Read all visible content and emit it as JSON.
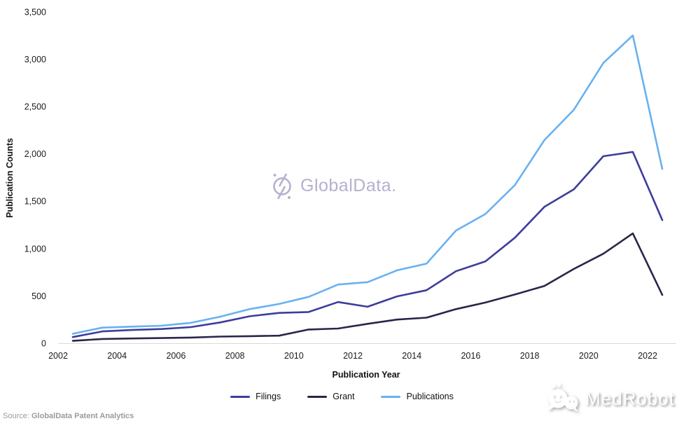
{
  "chart": {
    "colors": {
      "axis_line": "#d9d9d9",
      "tick_text": "#1a1a1a"
    }
  },
  "chart_data": {
    "type": "line",
    "title": "",
    "xlabel": "Publication Year",
    "ylabel": "Publication Counts",
    "x": [
      2002,
      2003,
      2004,
      2005,
      2006,
      2007,
      2008,
      2009,
      2010,
      2011,
      2012,
      2013,
      2014,
      2015,
      2016,
      2017,
      2018,
      2019,
      2020,
      2021,
      2022
    ],
    "series": [
      {
        "name": "Filings",
        "color": "#3d3d9c",
        "values": [
          65,
          125,
          140,
          150,
          170,
          220,
          285,
          320,
          330,
          435,
          385,
          495,
          560,
          760,
          865,
          1115,
          1440,
          1625,
          1975,
          2020,
          1300
        ]
      },
      {
        "name": "Grant",
        "color": "#27274a",
        "values": [
          25,
          45,
          50,
          55,
          60,
          70,
          75,
          80,
          145,
          155,
          205,
          250,
          270,
          360,
          430,
          515,
          605,
          785,
          945,
          1160,
          510
        ]
      },
      {
        "name": "Publications",
        "color": "#68b1f2",
        "values": [
          100,
          165,
          175,
          185,
          215,
          280,
          360,
          415,
          490,
          620,
          645,
          770,
          840,
          1190,
          1365,
          1670,
          2145,
          2465,
          2960,
          3250,
          1840
        ]
      }
    ],
    "ylim": [
      0,
      3500
    ],
    "yticks": [
      0,
      500,
      1000,
      1500,
      2000,
      2500,
      3000,
      3500
    ],
    "xticks": [
      2002,
      2004,
      2006,
      2008,
      2010,
      2012,
      2014,
      2016,
      2018,
      2020,
      2022
    ],
    "grid": false,
    "legend_position": "bottom"
  },
  "watermark": {
    "text": "GlobalData.",
    "color": "#b3abcb"
  },
  "source": {
    "prefix": "Source:",
    "text": "GlobalData Patent Analytics"
  },
  "brand": {
    "text": "MedRobot"
  }
}
